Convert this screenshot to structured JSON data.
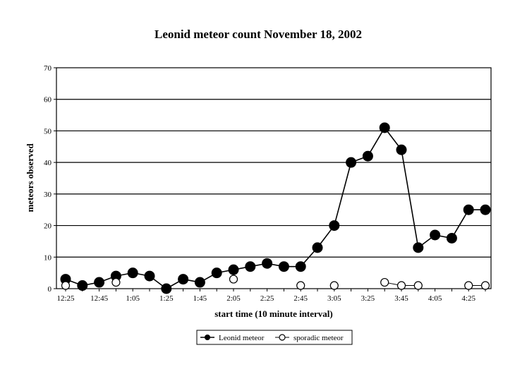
{
  "chart_data": {
    "type": "line",
    "title": "Leonid meteor count November 18, 2002",
    "xlabel": "start time (10 minute interval)",
    "ylabel": "meteors observed",
    "ylim": [
      0,
      70
    ],
    "yticks": [
      0,
      10,
      20,
      30,
      40,
      50,
      60,
      70
    ],
    "grid": "horizontal",
    "legend_position": "bottom-center",
    "categories": [
      "12:25",
      "12:35",
      "12:45",
      "12:55",
      "1:05",
      "1:15",
      "1:25",
      "1:35",
      "1:45",
      "1:55",
      "2:05",
      "2:15",
      "2:25",
      "2:35",
      "2:45",
      "2:55",
      "3:05",
      "3:15",
      "3:25",
      "3:35",
      "3:45",
      "3:55",
      "4:05",
      "4:15",
      "4:25",
      "4:35"
    ],
    "xtick_labels": [
      "12:25",
      "12:45",
      "1:05",
      "1:25",
      "1:45",
      "2:05",
      "2:25",
      "2:45",
      "3:05",
      "3:25",
      "3:45",
      "4:05",
      "4:25"
    ],
    "series": [
      {
        "name": "Leonid meteor",
        "marker": "filled-circle",
        "color": "#000000",
        "values": [
          3,
          1,
          2,
          4,
          5,
          4,
          0,
          3,
          2,
          5,
          6,
          7,
          8,
          7,
          7,
          13,
          20,
          40,
          42,
          51,
          44,
          13,
          17,
          16,
          25,
          25
        ]
      },
      {
        "name": "sporadic meteor",
        "marker": "open-circle",
        "color": "#000000",
        "values": [
          1,
          null,
          null,
          2,
          null,
          null,
          null,
          null,
          null,
          null,
          3,
          null,
          null,
          null,
          1,
          null,
          1,
          null,
          null,
          2,
          1,
          1,
          null,
          null,
          1,
          1
        ]
      }
    ]
  }
}
